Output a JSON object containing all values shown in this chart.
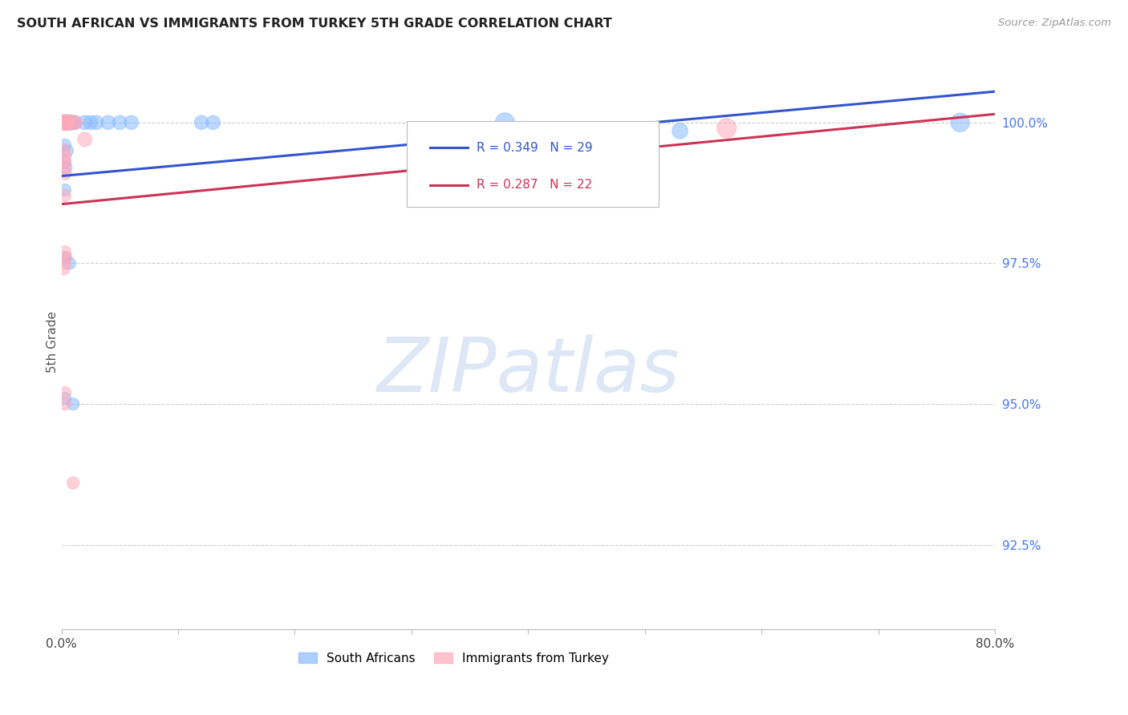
{
  "title": "SOUTH AFRICAN VS IMMIGRANTS FROM TURKEY 5TH GRADE CORRELATION CHART",
  "source": "Source: ZipAtlas.com",
  "ylabel": "5th Grade",
  "right_yticks": [
    100.0,
    97.5,
    95.0,
    92.5
  ],
  "right_ytick_labels": [
    "100.0%",
    "97.5%",
    "95.0%",
    "92.5%"
  ],
  "blue_R": 0.349,
  "blue_N": 29,
  "pink_R": 0.287,
  "pink_N": 22,
  "blue_color": "#88bbff",
  "pink_color": "#ffaabb",
  "trend_blue": "#3355cc",
  "trend_pink": "#cc3355",
  "xlim": [
    0.0,
    0.8
  ],
  "ylim": [
    91.0,
    101.2
  ],
  "xpct_ticks": [
    0.0,
    0.1,
    0.2,
    0.3,
    0.4,
    0.5,
    0.6,
    0.7,
    0.8
  ],
  "xpct_labels": [
    "0.0%",
    "",
    "",
    "",
    "",
    "",
    "",
    "",
    "80.0%"
  ],
  "blue_scatter": [
    [
      0.002,
      100.0
    ],
    [
      0.003,
      100.0
    ],
    [
      0.004,
      100.0
    ],
    [
      0.005,
      100.0
    ],
    [
      0.006,
      100.0
    ],
    [
      0.007,
      100.0
    ],
    [
      0.008,
      100.0
    ],
    [
      0.01,
      100.0
    ],
    [
      0.011,
      100.0
    ],
    [
      0.02,
      100.0
    ],
    [
      0.025,
      100.0
    ],
    [
      0.03,
      100.0
    ],
    [
      0.04,
      100.0
    ],
    [
      0.05,
      100.0
    ],
    [
      0.06,
      100.0
    ],
    [
      0.12,
      100.0
    ],
    [
      0.13,
      100.0
    ],
    [
      0.003,
      99.6
    ],
    [
      0.005,
      99.5
    ],
    [
      0.003,
      99.3
    ],
    [
      0.004,
      99.2
    ],
    [
      0.003,
      98.8
    ],
    [
      0.003,
      97.6
    ],
    [
      0.007,
      97.5
    ],
    [
      0.003,
      95.1
    ],
    [
      0.01,
      95.0
    ],
    [
      0.38,
      100.0
    ],
    [
      0.77,
      100.0
    ],
    [
      0.53,
      99.85
    ]
  ],
  "pink_scatter": [
    [
      0.002,
      100.0
    ],
    [
      0.003,
      100.0
    ],
    [
      0.004,
      100.0
    ],
    [
      0.005,
      100.0
    ],
    [
      0.006,
      100.0
    ],
    [
      0.01,
      100.0
    ],
    [
      0.012,
      100.0
    ],
    [
      0.02,
      99.7
    ],
    [
      0.002,
      99.5
    ],
    [
      0.003,
      99.4
    ],
    [
      0.002,
      99.2
    ],
    [
      0.003,
      99.1
    ],
    [
      0.003,
      98.7
    ],
    [
      0.003,
      97.7
    ],
    [
      0.004,
      97.6
    ],
    [
      0.003,
      97.5
    ],
    [
      0.003,
      95.2
    ],
    [
      0.003,
      95.0
    ],
    [
      0.01,
      93.6
    ],
    [
      0.57,
      99.9
    ],
    [
      0.002,
      97.4
    ],
    [
      0.003,
      99.3
    ]
  ],
  "blue_sizes": [
    180,
    180,
    180,
    200,
    180,
    180,
    180,
    160,
    160,
    160,
    160,
    160,
    160,
    160,
    160,
    160,
    160,
    120,
    120,
    120,
    120,
    120,
    120,
    120,
    120,
    120,
    300,
    280,
    200
  ],
  "pink_sizes": [
    200,
    200,
    200,
    180,
    180,
    160,
    160,
    160,
    140,
    140,
    140,
    140,
    120,
    120,
    120,
    120,
    120,
    120,
    120,
    300,
    120,
    120
  ],
  "blue_trendline": [
    [
      0.0,
      99.05
    ],
    [
      0.8,
      100.55
    ]
  ],
  "pink_trendline": [
    [
      0.0,
      98.55
    ],
    [
      0.8,
      100.15
    ]
  ],
  "watermark_text": "ZIPatlas",
  "watermark_color": "#c8d8f0",
  "watermark_alpha": 0.6,
  "legend_box_color": "#ffffff",
  "legend_box_edge": "#bbbbbb"
}
